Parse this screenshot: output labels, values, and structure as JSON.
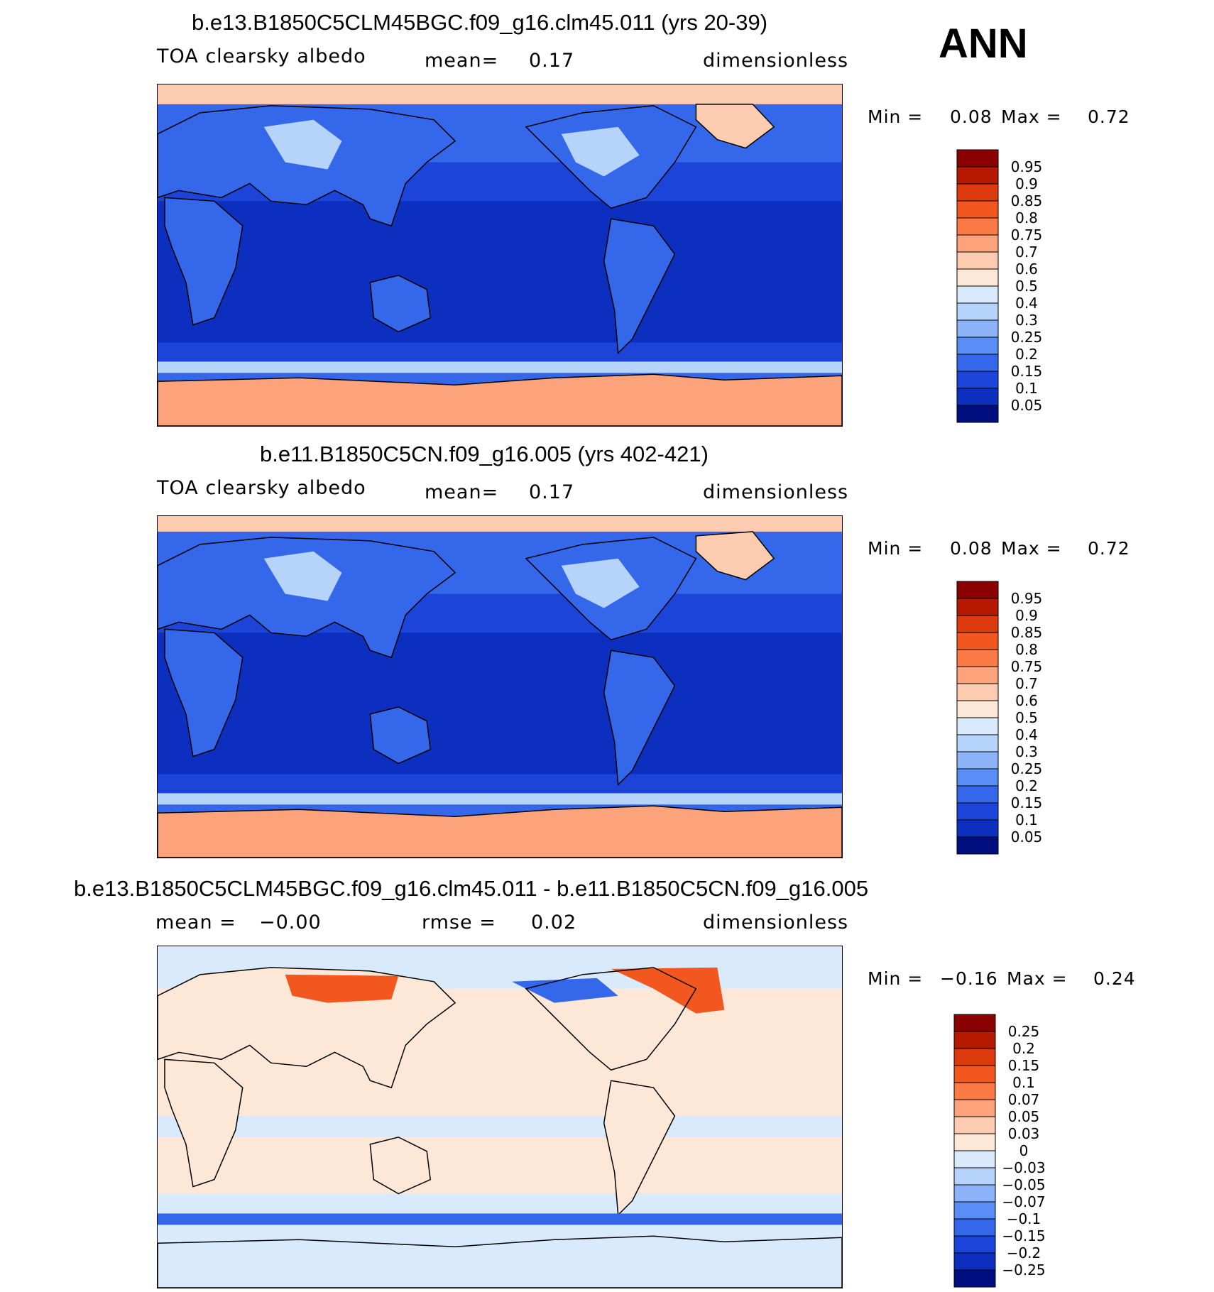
{
  "season": "ANN",
  "panels": [
    {
      "title": "b.e13.B1850C5CLM45BGC.f09_g16.clm45.011 (yrs 20-39)",
      "variable": "TOA clearsky albedo",
      "stat1_label": "mean=",
      "stat1_value": "0.17",
      "units": "dimensionless",
      "min_label": "Min =",
      "min_value": "0.08",
      "max_label": "Max =",
      "max_value": "0.72",
      "colorbar": {
        "labels": [
          "0.95",
          "0.9",
          "0.85",
          "0.8",
          "0.75",
          "0.7",
          "0.6",
          "0.5",
          "0.4",
          "0.3",
          "0.25",
          "0.2",
          "0.15",
          "0.1",
          "0.05"
        ],
        "colors": [
          "#8b0000",
          "#b51a00",
          "#dc3a0c",
          "#f2571f",
          "#fb7a45",
          "#fca37c",
          "#fdcbb0",
          "#fde7d6",
          "#d8eafb",
          "#b6d3fb",
          "#8cb2fa",
          "#5a8df5",
          "#3467ea",
          "#1c44d8",
          "#0d2fbf",
          "#000f80"
        ]
      }
    },
    {
      "title": "b.e11.B1850C5CN.f09_g16.005 (yrs 402-421)",
      "variable": "TOA clearsky albedo",
      "stat1_label": "mean=",
      "stat1_value": "0.17",
      "units": "dimensionless",
      "min_label": "Min =",
      "min_value": "0.08",
      "max_label": "Max =",
      "max_value": "0.72",
      "colorbar": {
        "labels": [
          "0.95",
          "0.9",
          "0.85",
          "0.8",
          "0.75",
          "0.7",
          "0.6",
          "0.5",
          "0.4",
          "0.3",
          "0.25",
          "0.2",
          "0.15",
          "0.1",
          "0.05"
        ],
        "colors": [
          "#8b0000",
          "#b51a00",
          "#dc3a0c",
          "#f2571f",
          "#fb7a45",
          "#fca37c",
          "#fdcbb0",
          "#fde7d6",
          "#d8eafb",
          "#b6d3fb",
          "#8cb2fa",
          "#5a8df5",
          "#3467ea",
          "#1c44d8",
          "#0d2fbf",
          "#000f80"
        ]
      }
    },
    {
      "title": "b.e13.B1850C5CLM45BGC.f09_g16.clm45.011 - b.e11.B1850C5CN.f09_g16.005",
      "stat1_label": "mean =",
      "stat1_value": "−0.00",
      "stat2_label": "rmse =",
      "stat2_value": "0.02",
      "units": "dimensionless",
      "min_label": "Min =",
      "min_value": "−0.16",
      "max_label": "Max =",
      "max_value": "0.24",
      "colorbar": {
        "labels": [
          "0.25",
          "0.2",
          "0.15",
          "0.1",
          "0.07",
          "0.05",
          "0.03",
          "0",
          "−0.03",
          "−0.05",
          "−0.07",
          "−0.1",
          "−0.15",
          "−0.2",
          "−0.25"
        ],
        "colors": [
          "#8b0000",
          "#b51a00",
          "#dc3a0c",
          "#f2571f",
          "#fb7a45",
          "#fca37c",
          "#fdcbb0",
          "#fde7d6",
          "#d8eafb",
          "#b6d3fb",
          "#8cb2fa",
          "#5a8df5",
          "#3467ea",
          "#1c44d8",
          "#0d2fbf",
          "#000f80"
        ]
      }
    }
  ],
  "map_colors": {
    "ocean_tropics": "#0d2fbf",
    "ocean_mid": "#1c44d8",
    "ocean_subpolar": "#3467ea",
    "land": "#3467ea",
    "land_bright": "#b6d3fb",
    "snow": "#fdcbb0",
    "antarctic": "#fca37c",
    "diff_pos": "#fde7d6",
    "diff_neg": "#d8eafb",
    "diff_hot": "#f2571f",
    "diff_cold": "#3467ea"
  }
}
